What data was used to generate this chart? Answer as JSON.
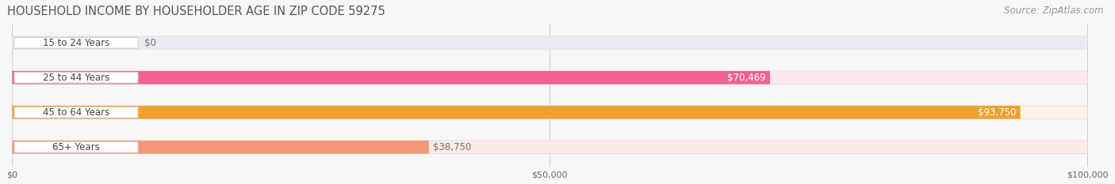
{
  "title": "HOUSEHOLD INCOME BY HOUSEHOLDER AGE IN ZIP CODE 59275",
  "source": "Source: ZipAtlas.com",
  "categories": [
    "15 to 24 Years",
    "25 to 44 Years",
    "45 to 64 Years",
    "65+ Years"
  ],
  "values": [
    0,
    70469,
    93750,
    38750
  ],
  "bar_colors": [
    "#b0b0e0",
    "#f06090",
    "#f0a030",
    "#f09878"
  ],
  "bar_bg_colors": [
    "#ebebf5",
    "#fde8ef",
    "#fef4e4",
    "#fdeae4"
  ],
  "value_labels": [
    "$0",
    "$70,469",
    "$93,750",
    "$38,750"
  ],
  "value_label_inside": [
    false,
    true,
    true,
    false
  ],
  "xlim": [
    0,
    100000
  ],
  "xticks": [
    0,
    50000,
    100000
  ],
  "xticklabels": [
    "$0",
    "$50,000",
    "$100,000"
  ],
  "title_fontsize": 10.5,
  "source_fontsize": 8.5,
  "figsize": [
    14.06,
    2.33
  ],
  "dpi": 100,
  "bg_color": "#f7f7f7"
}
